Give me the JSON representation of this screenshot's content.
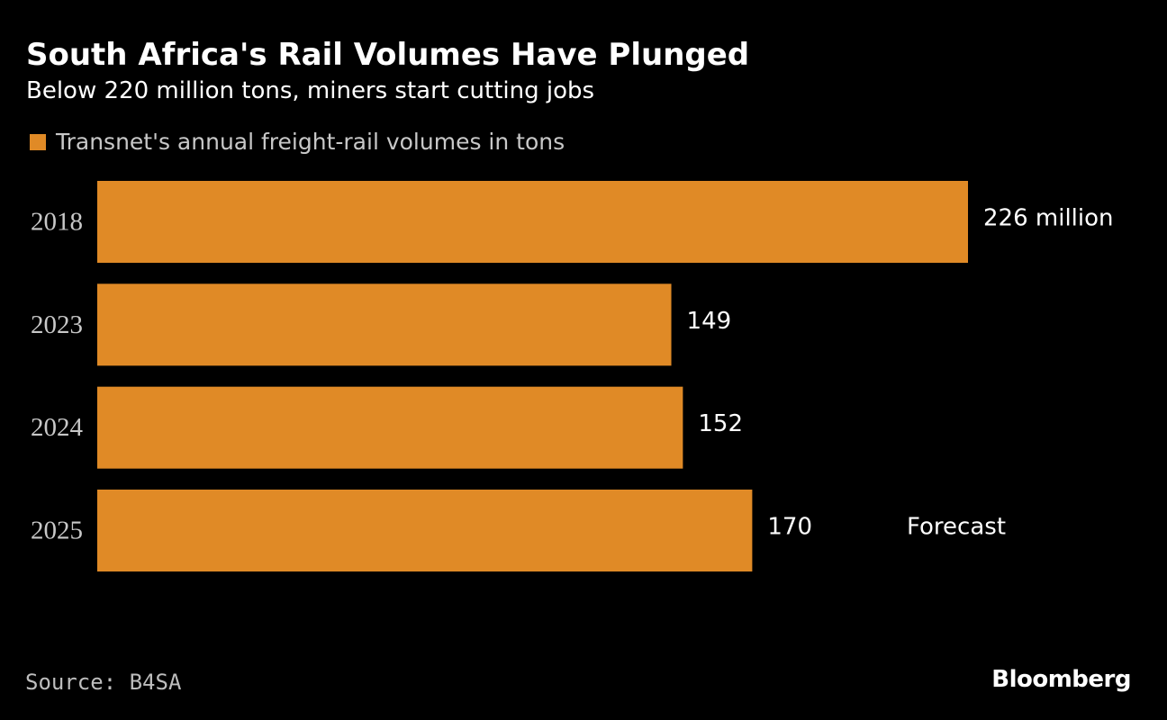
{
  "chart_data": {
    "type": "bar",
    "orientation": "horizontal",
    "title": "South Africa's Rail Volumes Have Plunged",
    "subtitle": "Below 220 million tons, miners start cutting jobs",
    "categories": [
      "2018",
      "2023",
      "2024",
      "2025"
    ],
    "series": [
      {
        "name": "Transnet's annual freight-rail volumes in tons",
        "values": [
          226,
          149,
          152,
          170
        ],
        "data_labels": [
          "226 million",
          "149",
          "152",
          "170"
        ],
        "color": "#e08a26"
      }
    ],
    "annotations": [
      {
        "category": "2025",
        "text": "Forecast"
      }
    ],
    "xlim": [
      0,
      226
    ],
    "grid": false,
    "legend": "top-left"
  },
  "source": "Source: B4SA",
  "brand": "Bloomberg",
  "colors": {
    "background": "#000000",
    "bar": "#e08a26",
    "text": "#ffffff",
    "muted_text": "#c8c8c8"
  }
}
